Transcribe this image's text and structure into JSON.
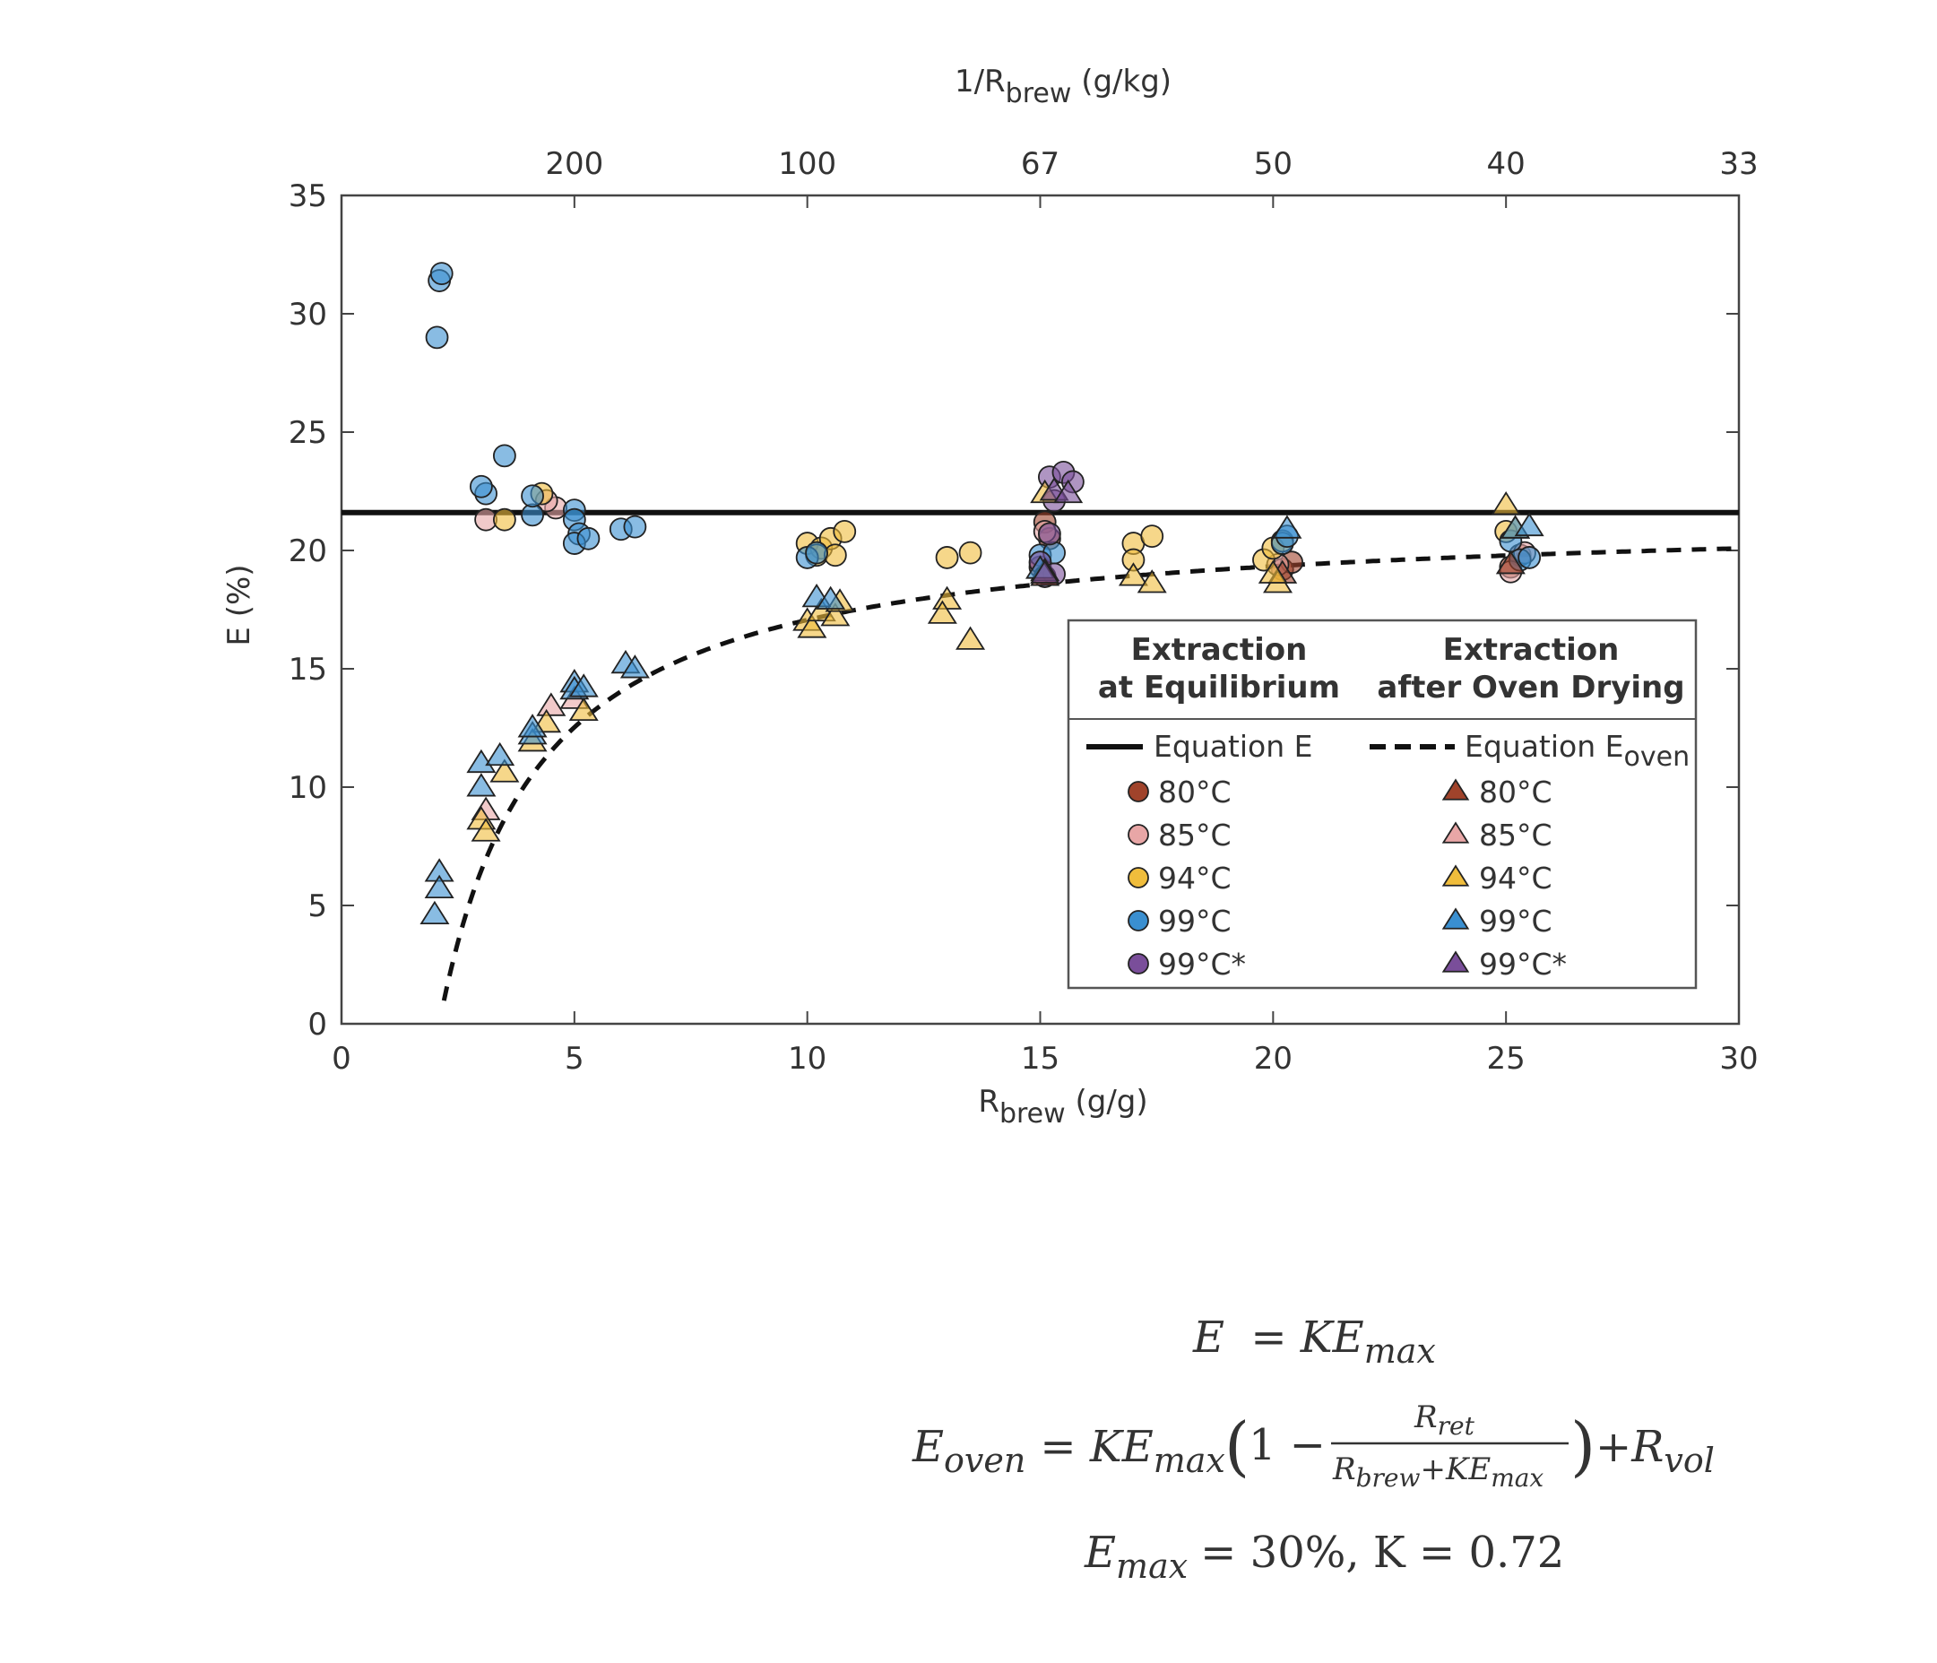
{
  "chart_data": {
    "type": "scatter",
    "xlabel": {
      "base": "R",
      "sub": "brew",
      "unit": " (g/g)"
    },
    "ylabel": "E (%)",
    "top_axis_label": {
      "base": "1/R",
      "sub": "brew",
      "unit": " (g/kg)"
    },
    "xlim": [
      0,
      30
    ],
    "ylim": [
      0,
      35
    ],
    "x_ticks": [
      "0",
      "5",
      "10",
      "15",
      "20",
      "25",
      "30"
    ],
    "y_ticks": [
      "0",
      "5",
      "10",
      "15",
      "20",
      "25",
      "30",
      "35"
    ],
    "top_ticks": [
      {
        "x": 5,
        "label": "200"
      },
      {
        "x": 10,
        "label": "100"
      },
      {
        "x": 15,
        "label": "67"
      },
      {
        "x": 20,
        "label": "50"
      },
      {
        "x": 25,
        "label": "40"
      },
      {
        "x": 30,
        "label": "33"
      }
    ],
    "lines": [
      {
        "name": "Equation E",
        "style": "solid",
        "constant": 21.6
      },
      {
        "name": "Equation E_oven",
        "style": "dashed",
        "Emax": 30,
        "K": 0.72,
        "Rret": 2.1,
        "Rvol": 0
      }
    ],
    "series": [
      {
        "name": "80°C",
        "marker": "circle",
        "color": "#a0432b",
        "points": [
          [
            15.1,
            21.2
          ],
          [
            15.2,
            20.5
          ],
          [
            20.2,
            19.2
          ],
          [
            20.4,
            19.5
          ],
          [
            25.1,
            19.3
          ],
          [
            25.3,
            19.8
          ],
          [
            15.0,
            19.3
          ]
        ]
      },
      {
        "name": "85°C",
        "marker": "circle",
        "color": "#e8a6a6",
        "points": [
          [
            3.1,
            21.3
          ],
          [
            4.6,
            21.8
          ],
          [
            4.4,
            22.1
          ],
          [
            15.1,
            20.8
          ],
          [
            20.1,
            19.4
          ],
          [
            25.1,
            19.1
          ],
          [
            25.4,
            19.9
          ]
        ]
      },
      {
        "name": "94°C",
        "marker": "circle",
        "color": "#f0bd3c",
        "points": [
          [
            3.5,
            21.3
          ],
          [
            4.3,
            22.4
          ],
          [
            10.0,
            20.3
          ],
          [
            10.3,
            20.1
          ],
          [
            10.5,
            20.5
          ],
          [
            10.8,
            20.8
          ],
          [
            10.2,
            19.8
          ],
          [
            10.6,
            19.8
          ],
          [
            13.0,
            19.7
          ],
          [
            13.5,
            19.9
          ],
          [
            17.0,
            20.3
          ],
          [
            17.4,
            20.6
          ],
          [
            17.0,
            19.6
          ],
          [
            19.8,
            19.6
          ],
          [
            20.0,
            20.1
          ],
          [
            20.2,
            20.4
          ],
          [
            25.0,
            20.8
          ]
        ]
      },
      {
        "name": "99°C",
        "marker": "circle",
        "color": "#3a8fd0",
        "points": [
          [
            2.1,
            31.4
          ],
          [
            2.15,
            31.7
          ],
          [
            2.05,
            29.0
          ],
          [
            3.5,
            24.0
          ],
          [
            3.1,
            22.4
          ],
          [
            3.0,
            22.7
          ],
          [
            4.1,
            21.5
          ],
          [
            4.1,
            22.3
          ],
          [
            5.0,
            21.7
          ],
          [
            5.0,
            21.3
          ],
          [
            5.1,
            20.7
          ],
          [
            5.0,
            20.3
          ],
          [
            5.3,
            20.5
          ],
          [
            6.0,
            20.9
          ],
          [
            6.3,
            21.0
          ],
          [
            10.0,
            19.7
          ],
          [
            10.2,
            19.9
          ],
          [
            15.0,
            19.8
          ],
          [
            15.3,
            19.9
          ],
          [
            20.2,
            20.3
          ],
          [
            20.3,
            20.6
          ],
          [
            25.1,
            20.4
          ],
          [
            25.3,
            19.6
          ],
          [
            25.5,
            19.7
          ]
        ]
      },
      {
        "name": "99°C*",
        "marker": "circle",
        "color": "#7a4e9a",
        "points": [
          [
            15.2,
            23.1
          ],
          [
            15.5,
            23.3
          ],
          [
            15.7,
            22.9
          ],
          [
            15.3,
            22.1
          ],
          [
            15.2,
            20.7
          ],
          [
            15.0,
            19.5
          ],
          [
            15.1,
            18.9
          ],
          [
            15.3,
            19.0
          ]
        ]
      },
      {
        "name": "80°C",
        "marker": "triangle",
        "color": "#a0432b",
        "points": [
          [
            15.1,
            18.9
          ],
          [
            20.2,
            19.0
          ],
          [
            25.1,
            19.4
          ]
        ]
      },
      {
        "name": "85°C",
        "marker": "triangle",
        "color": "#e8a6a6",
        "points": [
          [
            3.1,
            9.0
          ],
          [
            4.5,
            13.4
          ],
          [
            5.0,
            13.7
          ],
          [
            15.1,
            19.1
          ]
        ]
      },
      {
        "name": "94°C",
        "marker": "triangle",
        "color": "#f0bd3c",
        "points": [
          [
            3.0,
            8.6
          ],
          [
            3.1,
            8.1
          ],
          [
            3.5,
            10.6
          ],
          [
            4.1,
            11.9
          ],
          [
            4.4,
            12.7
          ],
          [
            5.2,
            13.2
          ],
          [
            10.0,
            17.0
          ],
          [
            10.1,
            16.7
          ],
          [
            10.3,
            17.4
          ],
          [
            10.6,
            17.2
          ],
          [
            10.7,
            17.8
          ],
          [
            13.0,
            17.9
          ],
          [
            13.5,
            16.2
          ],
          [
            12.9,
            17.3
          ],
          [
            15.1,
            22.4
          ],
          [
            17.0,
            18.9
          ],
          [
            17.4,
            18.6
          ],
          [
            20.1,
            18.6
          ],
          [
            20.0,
            19.0
          ],
          [
            25.0,
            21.9
          ],
          [
            25.2,
            20.9
          ]
        ]
      },
      {
        "name": "99°C",
        "marker": "triangle",
        "color": "#3a8fd0",
        "points": [
          [
            2.1,
            6.4
          ],
          [
            2.1,
            5.7
          ],
          [
            2.0,
            4.6
          ],
          [
            3.0,
            11.0
          ],
          [
            3.0,
            10.0
          ],
          [
            3.4,
            11.3
          ],
          [
            4.1,
            12.2
          ],
          [
            4.1,
            12.5
          ],
          [
            5.0,
            14.4
          ],
          [
            5.0,
            14.1
          ],
          [
            5.2,
            14.2
          ],
          [
            6.1,
            15.2
          ],
          [
            6.3,
            15.0
          ],
          [
            10.2,
            18.0
          ],
          [
            10.5,
            17.9
          ],
          [
            15.0,
            19.2
          ],
          [
            20.3,
            20.9
          ],
          [
            25.2,
            20.9
          ],
          [
            25.5,
            21.0
          ]
        ]
      },
      {
        "name": "99°C*",
        "marker": "triangle",
        "color": "#7a4e9a",
        "points": [
          [
            15.3,
            22.5
          ],
          [
            15.6,
            22.4
          ],
          [
            15.1,
            19.0
          ]
        ]
      }
    ],
    "legend": {
      "position": "lower-right",
      "col1_title_line1": "Extraction",
      "col1_title_line2": "at Equilibrium",
      "col2_title_line1": "Extraction",
      "col2_title_line2": "after Oven Drying",
      "line1_label": "Equation E",
      "line2_label_base": "Equation E",
      "line2_label_sub": "oven",
      "entries": [
        "80°C",
        "85°C",
        "94°C",
        "99°C",
        "99°C*"
      ],
      "colors": [
        "#a0432b",
        "#e8a6a6",
        "#f0bd3c",
        "#3a8fd0",
        "#7a4e9a"
      ]
    }
  },
  "equations": {
    "eq1_lhs": "E",
    "eq1_rhs": "= KE",
    "eq1_rhs_sub": "max",
    "eq2_lhs": "E",
    "eq2_lhs_sub": "oven",
    "eq2_mid": "= KE",
    "eq2_mid_sub": "max",
    "eq2_paren_open": "(",
    "eq2_one_minus": "1 −",
    "eq2_num": "R",
    "eq2_num_sub": "ret",
    "eq2_den": "R",
    "eq2_den_sub": "brew",
    "eq2_den_plus": "+KE",
    "eq2_den_sub2": "max",
    "eq2_paren_close": ")",
    "eq2_tail": "+R",
    "eq2_tail_sub": "vol",
    "eq3_lhs": "E",
    "eq3_lhs_sub": "max",
    "eq3_rhs": "= 30%, K = 0.72"
  }
}
